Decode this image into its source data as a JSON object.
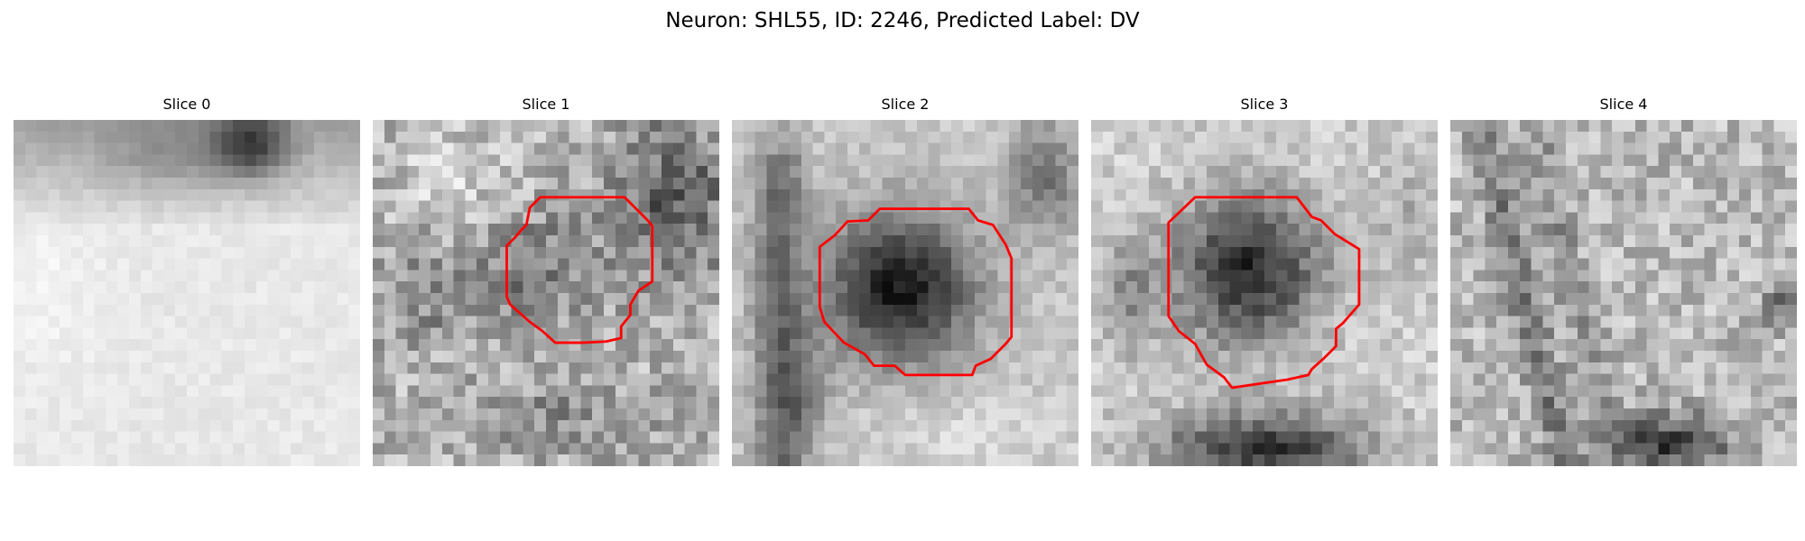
{
  "figure": {
    "title": "Neuron: SHL55, ID: 2246, Predicted Label: DV"
  },
  "contour_color": "#ff0000",
  "slices": [
    {
      "label": "Slice 0",
      "has_contour": false,
      "style": "bright-top-dark-blob"
    },
    {
      "label": "Slice 1",
      "has_contour": true,
      "style": "mottled-with-soma"
    },
    {
      "label": "Slice 2",
      "has_contour": true,
      "style": "dark-soma-center"
    },
    {
      "label": "Slice 3",
      "has_contour": true,
      "style": "dark-soma-bottom-blob"
    },
    {
      "label": "Slice 4",
      "has_contour": false,
      "style": "noisy-streaks"
    }
  ]
}
